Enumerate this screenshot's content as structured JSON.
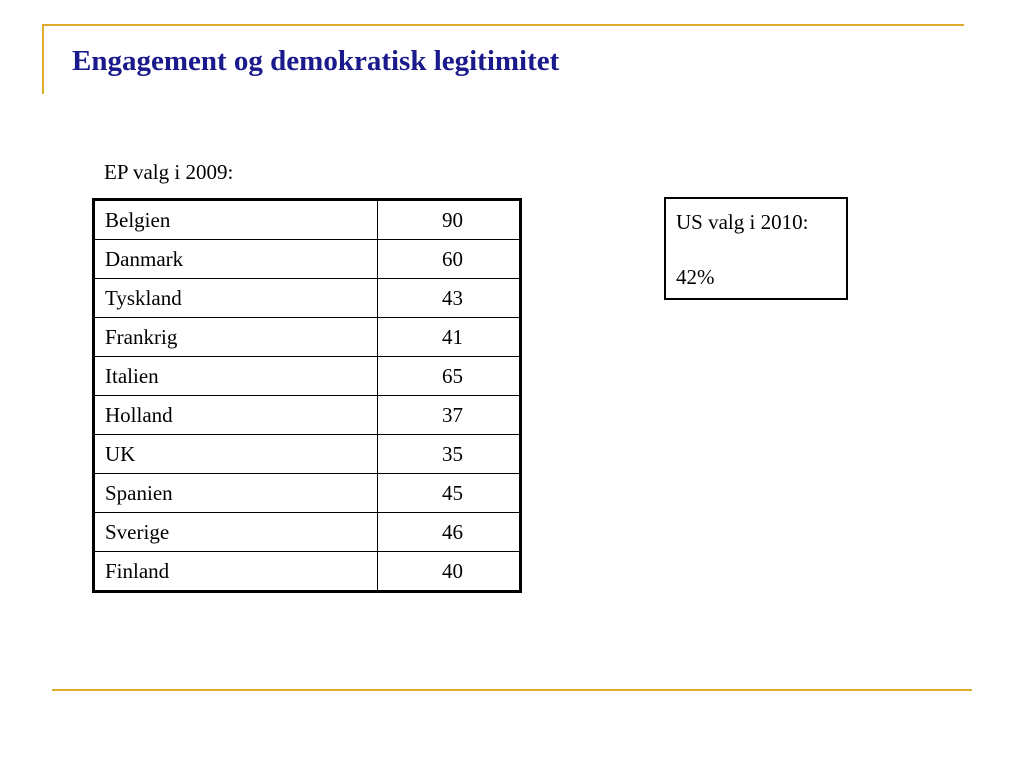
{
  "title": "Engagement og demokratisk legitimitet",
  "ep_caption": "EP valg i 2009:",
  "ep_rows": [
    {
      "country": "Belgien",
      "value": "90"
    },
    {
      "country": "Danmark",
      "value": "60"
    },
    {
      "country": "Tyskland",
      "value": "43"
    },
    {
      "country": "Frankrig",
      "value": "41"
    },
    {
      "country": "Italien",
      "value": "65"
    },
    {
      "country": "Holland",
      "value": "37"
    },
    {
      "country": "UK",
      "value": "35"
    },
    {
      "country": "Spanien",
      "value": "45"
    },
    {
      "country": "Sverige",
      "value": "46"
    },
    {
      "country": "Finland",
      "value": "40"
    }
  ],
  "us_box": {
    "title": "US valg i 2010:",
    "value": "42%"
  },
  "colors": {
    "title": "#1a1a8c",
    "rules": "#e0ac2e"
  }
}
